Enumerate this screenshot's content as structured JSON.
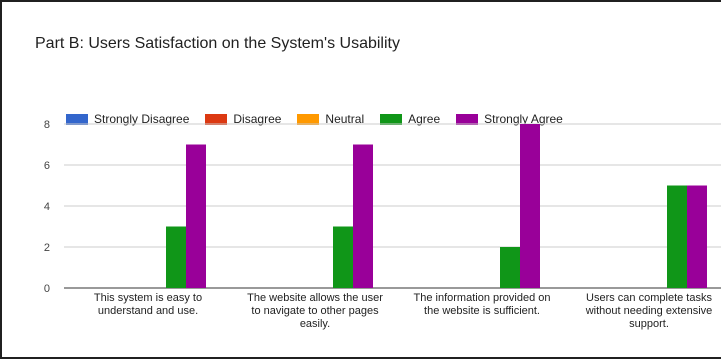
{
  "title": "Part B: Users Satisfaction on the System's Usability",
  "chart_data": {
    "type": "bar",
    "categories": [
      [
        "This system is easy to",
        "understand and use."
      ],
      [
        "The website allows the user",
        "to navigate to other pages",
        "easily."
      ],
      [
        "The information provided on",
        "the website is sufficient."
      ],
      [
        "Users can complete tasks",
        "without needing extensive",
        "support."
      ]
    ],
    "series": [
      {
        "name": "Strongly Disagree",
        "color": "#3366cc",
        "values": [
          0,
          0,
          0,
          0
        ]
      },
      {
        "name": "Disagree",
        "color": "#dc3912",
        "values": [
          0,
          0,
          0,
          0
        ]
      },
      {
        "name": "Neutral",
        "color": "#ff9900",
        "values": [
          0,
          0,
          0,
          0
        ]
      },
      {
        "name": "Agree",
        "color": "#109618",
        "values": [
          3,
          3,
          2,
          5
        ]
      },
      {
        "name": "Strongly Agree",
        "color": "#990099",
        "values": [
          7,
          7,
          8,
          5
        ]
      }
    ],
    "yticks": [
      0,
      2,
      4,
      6,
      8
    ],
    "ylim": [
      0,
      8
    ],
    "grid": true,
    "legend_position": "top"
  }
}
